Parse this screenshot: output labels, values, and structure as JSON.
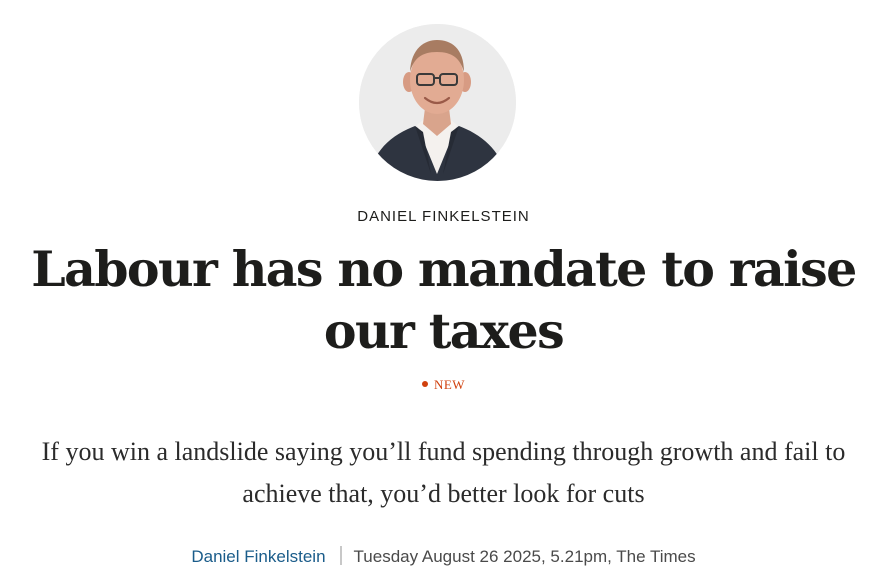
{
  "article": {
    "columnist_label": "DANIEL FINKELSTEIN",
    "headline": "Labour has no mandate to raise our taxes",
    "new_label": "NEW",
    "standfirst": "If you win a landslide saying you’ll fund spending through growth and fail to achieve that, you’d better look for cuts",
    "author_name": "Daniel Finkelstein",
    "published": "Tuesday August 26 2025, 5.21pm, The Times"
  },
  "colors": {
    "new_accent": "#d0400d",
    "author_link": "#1a5c8a",
    "avatar_background": "#ececec"
  }
}
